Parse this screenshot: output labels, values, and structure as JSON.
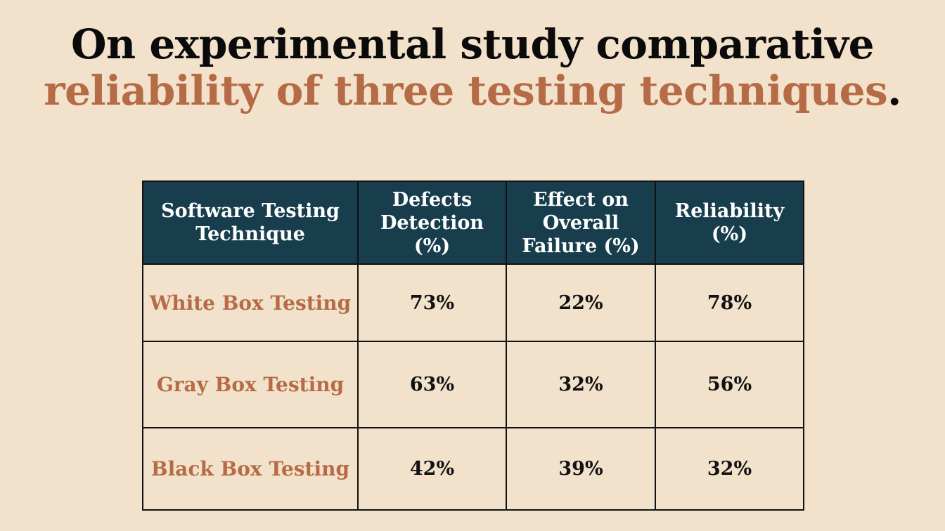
{
  "title": {
    "line1": "On experimental study comparative",
    "line2": "reliability of three testing techniques",
    "period": "."
  },
  "colors": {
    "background": "#f2e2cc",
    "header_fill": "#183e4e",
    "accent": "#b56b45",
    "text": "#111111"
  },
  "table": {
    "headers": [
      "Software Testing Technique",
      "Defects Detection (%)",
      "Effect on Overall Failure (%)",
      "Reliability (%)"
    ],
    "rows": [
      {
        "technique": "White Box Testing",
        "defects_detection": "73%",
        "overall_failure": "22%",
        "reliability": "78%"
      },
      {
        "technique": "Gray Box Testing",
        "defects_detection": "63%",
        "overall_failure": "32%",
        "reliability": "56%"
      },
      {
        "technique": "Black Box Testing",
        "defects_detection": "42%",
        "overall_failure": "39%",
        "reliability": "32%"
      }
    ]
  }
}
